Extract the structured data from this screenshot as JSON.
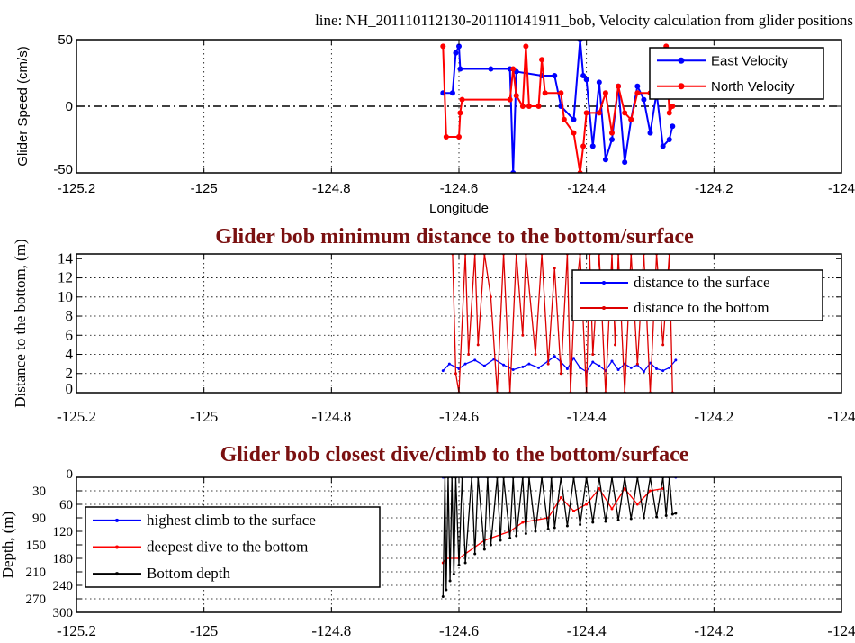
{
  "chart_data": [
    {
      "type": "line",
      "title": "line: NH_201110112130-201110141911_bob, Velocity calculation from glider positions",
      "xlabel": "Longitude",
      "ylabel": "Glider Speed (cm/s)",
      "xlim": [
        -125.2,
        -124
      ],
      "ylim": [
        -50,
        50
      ],
      "xticks": [
        "-125.2",
        "-125",
        "-124.8",
        "-124.6",
        "-124.4",
        "-124.2",
        "-124"
      ],
      "xtick_values": [
        -125.2,
        -125,
        -124.8,
        -124.6,
        -124.4,
        -124.2,
        -124
      ],
      "yticks": [
        "-50",
        "0",
        "50"
      ],
      "ytick_values": [
        -50,
        0,
        50
      ],
      "grid": "vertical dotted",
      "reference_line": 0,
      "legend": "top-right",
      "series": [
        {
          "name": "East Velocity",
          "color": "#0000ff",
          "x": [
            -124.625,
            -124.61,
            -124.605,
            -124.6,
            -124.598,
            -124.55,
            -124.52,
            -124.515,
            -124.51,
            -124.47,
            -124.45,
            -124.44,
            -124.42,
            -124.41,
            -124.405,
            -124.4,
            -124.39,
            -124.38,
            -124.37,
            -124.36,
            -124.35,
            -124.34,
            -124.33,
            -124.32,
            -124.31,
            -124.3,
            -124.29,
            -124.28,
            -124.27,
            -124.265
          ],
          "y": [
            10,
            10,
            40,
            45,
            28,
            28,
            28,
            -50,
            26,
            23,
            23,
            0,
            -10,
            50,
            23,
            20,
            -30,
            18,
            -40,
            -25,
            15,
            -42,
            -10,
            15,
            5,
            -20,
            10,
            -30,
            -25,
            -15
          ]
        },
        {
          "name": "North Velocity",
          "color": "#ff0000",
          "x": [
            -124.625,
            -124.62,
            -124.6,
            -124.598,
            -124.595,
            -124.52,
            -124.515,
            -124.51,
            -124.5,
            -124.495,
            -124.49,
            -124.475,
            -124.47,
            -124.465,
            -124.44,
            -124.435,
            -124.42,
            -124.41,
            -124.405,
            -124.4,
            -124.38,
            -124.37,
            -124.36,
            -124.35,
            -124.34,
            -124.33,
            -124.32,
            -124.3,
            -124.29,
            -124.28,
            -124.275,
            -124.27,
            -124.265
          ],
          "y": [
            45,
            -23,
            -23,
            -5,
            5,
            5,
            28,
            8,
            0,
            45,
            0,
            0,
            35,
            10,
            10,
            -10,
            -20,
            -50,
            -30,
            -5,
            -5,
            10,
            -20,
            15,
            -5,
            -10,
            10,
            10,
            25,
            20,
            45,
            -5,
            0
          ]
        }
      ]
    },
    {
      "type": "line",
      "title": "Glider bob minimum distance to the bottom/surface",
      "xlabel": "",
      "ylabel": "Distance to the bottom, (m)",
      "xlim": [
        -125.2,
        -124
      ],
      "ylim": [
        0,
        14.5
      ],
      "xticks": [
        "-125.2",
        "-125",
        "-124.8",
        "-124.6",
        "-124.4",
        "-124.2",
        "-124"
      ],
      "xtick_values": [
        -125.2,
        -125,
        -124.8,
        -124.6,
        -124.4,
        -124.2,
        -124
      ],
      "yticks": [
        "0",
        "2",
        "4",
        "6",
        "8",
        "10",
        "12",
        "14"
      ],
      "ytick_values": [
        0,
        2,
        4,
        6,
        8,
        10,
        12,
        14
      ],
      "grid": "dotted",
      "legend": "top-right",
      "series": [
        {
          "name": "distance to the surface",
          "color": "#0000ff",
          "x": [
            -124.625,
            -124.615,
            -124.6,
            -124.59,
            -124.575,
            -124.56,
            -124.545,
            -124.53,
            -124.515,
            -124.5,
            -124.49,
            -124.475,
            -124.46,
            -124.45,
            -124.44,
            -124.43,
            -124.42,
            -124.41,
            -124.4,
            -124.39,
            -124.38,
            -124.37,
            -124.36,
            -124.35,
            -124.34,
            -124.33,
            -124.32,
            -124.31,
            -124.3,
            -124.29,
            -124.28,
            -124.27,
            -124.26
          ],
          "y": [
            2.3,
            3.0,
            2.5,
            3.0,
            3.4,
            2.8,
            3.5,
            2.9,
            2.4,
            2.7,
            3.0,
            2.6,
            3.3,
            3.8,
            3.2,
            2.5,
            3.6,
            2.6,
            2.2,
            3.2,
            2.8,
            2.3,
            3.3,
            2.4,
            3.0,
            2.6,
            2.9,
            2.2,
            3.1,
            2.5,
            2.3,
            2.6,
            3.4
          ]
        },
        {
          "name": "distance to the bottom",
          "color": "#dd0000",
          "x": [
            -124.61,
            -124.605,
            -124.6,
            -124.59,
            -124.585,
            -124.575,
            -124.57,
            -124.56,
            -124.55,
            -124.54,
            -124.53,
            -124.52,
            -124.51,
            -124.5,
            -124.495,
            -124.48,
            -124.47,
            -124.46,
            -124.45,
            -124.44,
            -124.43,
            -124.425,
            -124.42,
            -124.41,
            -124.4,
            -124.395,
            -124.39,
            -124.38,
            -124.37,
            -124.36,
            -124.355,
            -124.35,
            -124.34,
            -124.33,
            -124.32,
            -124.31,
            -124.3,
            -124.29,
            -124.28,
            -124.27,
            -124.265
          ],
          "y": [
            14.5,
            2,
            0,
            14.5,
            4,
            14.5,
            5,
            14.5,
            10,
            0,
            14.5,
            0,
            14.5,
            6,
            14.5,
            4,
            14.5,
            3,
            13,
            2,
            14.5,
            0,
            8,
            14.5,
            0,
            14.5,
            4,
            14.5,
            0,
            14.5,
            5,
            14.5,
            0,
            14.5,
            3,
            14.5,
            0,
            14.5,
            5,
            14.5,
            0
          ]
        }
      ]
    },
    {
      "type": "line",
      "title": "Glider bob closest dive/climb to the bottom/surface",
      "xlabel": "",
      "ylabel": "Depth, (m)",
      "xlim": [
        -125.2,
        -124
      ],
      "ylim": [
        300,
        0
      ],
      "xticks": [
        "-125.2",
        "-125",
        "-124.8",
        "-124.6",
        "-124.4",
        "-124.2",
        "-124"
      ],
      "xtick_values": [
        -125.2,
        -125,
        -124.8,
        -124.6,
        -124.4,
        -124.2,
        -124
      ],
      "yticks": [
        "0",
        "30",
        "60",
        "90",
        "120",
        "150",
        "180",
        "210",
        "240",
        "270",
        "300"
      ],
      "ytick_values": [
        0,
        30,
        60,
        90,
        120,
        150,
        180,
        210,
        240,
        270,
        300
      ],
      "grid": "dotted",
      "legend": "middle-left",
      "series": [
        {
          "name": "highest climb to the surface",
          "color": "#0000ff",
          "x": [
            -124.625,
            -124.26
          ],
          "y": [
            0,
            0
          ]
        },
        {
          "name": "deepest dive to the bottom",
          "color": "#ff0000",
          "x": [
            -124.625,
            -124.62,
            -124.6,
            -124.56,
            -124.52,
            -124.5,
            -124.46,
            -124.44,
            -124.42,
            -124.4,
            -124.38,
            -124.36,
            -124.34,
            -124.32,
            -124.3,
            -124.28
          ],
          "y": [
            190,
            180,
            180,
            140,
            120,
            100,
            90,
            45,
            75,
            60,
            25,
            70,
            25,
            60,
            30,
            25
          ]
        },
        {
          "name": "Bottom depth",
          "color": "#000000",
          "x": [
            -124.625,
            -124.622,
            -124.62,
            -124.617,
            -124.614,
            -124.611,
            -124.608,
            -124.605,
            -124.6,
            -124.595,
            -124.59,
            -124.58,
            -124.575,
            -124.57,
            -124.56,
            -124.555,
            -124.55,
            -124.54,
            -124.535,
            -124.53,
            -124.52,
            -124.515,
            -124.51,
            -124.5,
            -124.495,
            -124.49,
            -124.48,
            -124.47,
            -124.46,
            -124.455,
            -124.45,
            -124.44,
            -124.43,
            -124.42,
            -124.41,
            -124.4,
            -124.39,
            -124.38,
            -124.37,
            -124.36,
            -124.35,
            -124.34,
            -124.33,
            -124.32,
            -124.31,
            -124.3,
            -124.29,
            -124.28,
            -124.275,
            -124.27,
            -124.265,
            -124.26
          ],
          "y": [
            265,
            0,
            250,
            0,
            230,
            0,
            215,
            0,
            195,
            0,
            190,
            0,
            170,
            0,
            160,
            0,
            150,
            0,
            140,
            0,
            135,
            0,
            130,
            0,
            125,
            0,
            120,
            0,
            115,
            0,
            112,
            0,
            108,
            0,
            105,
            0,
            100,
            0,
            98,
            0,
            95,
            0,
            92,
            0,
            90,
            0,
            88,
            0,
            85,
            0,
            82,
            80
          ]
        }
      ]
    }
  ]
}
